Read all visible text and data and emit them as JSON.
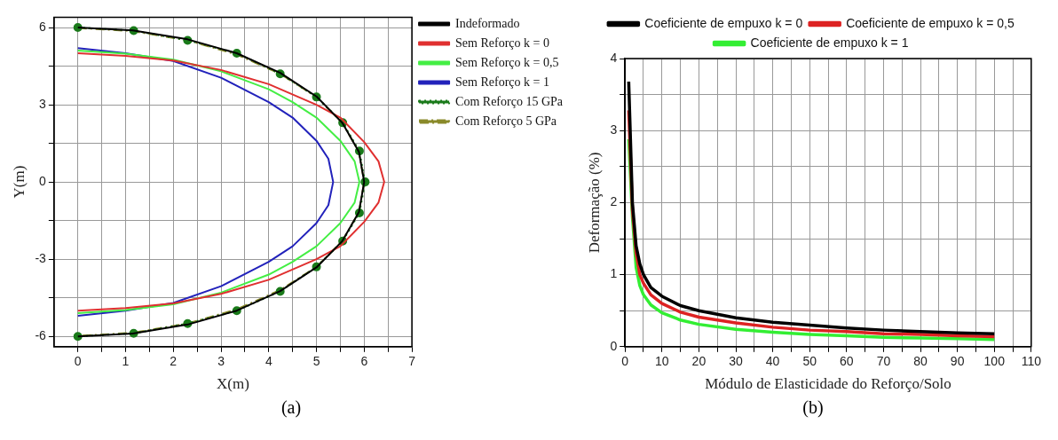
{
  "chart_data": [
    {
      "type": "line",
      "xlabel": "X(m)",
      "ylabel": "Y(m)",
      "annotations": [
        "(a)"
      ],
      "xlim": [
        -0.5,
        7
      ],
      "xticks": [
        0,
        {
          "value": 0.5,
          "label": null
        },
        1,
        {
          "value": 1.5,
          "label": null
        },
        2,
        {
          "value": 2.5,
          "label": null
        },
        3,
        {
          "value": 3.5,
          "label": null
        },
        4,
        {
          "value": 4.5,
          "label": null
        },
        5,
        {
          "value": 5.5,
          "label": null
        },
        6,
        {
          "value": 6.5,
          "label": null
        },
        7
      ],
      "ylim": [
        -6.4,
        6.4
      ],
      "yticks": [
        -6,
        {
          "value": -4.5,
          "label": null
        },
        -3,
        {
          "value": -1.5,
          "label": null
        },
        0,
        {
          "value": 1.5,
          "label": null
        },
        3,
        {
          "value": 4.5,
          "label": null
        },
        6
      ],
      "grid": true,
      "legend": "top right",
      "marker": "none",
      "series": [
        {
          "name": "Indeformado",
          "color": "#000000",
          "line_style": "solid",
          "x": [
            0,
            1.15,
            2.3,
            3.33,
            4.24,
            5,
            5.54,
            5.89,
            6,
            5.89,
            5.54,
            5,
            4.24,
            3.33,
            2.3,
            1.15,
            0
          ],
          "values": [
            6,
            5.89,
            5.54,
            5,
            4.24,
            3.32,
            2.3,
            1.17,
            0,
            -1.17,
            -2.3,
            -3.32,
            -4.24,
            -5,
            -5.54,
            -5.89,
            -6
          ]
        },
        {
          "name": "Sem Reforço k = 0",
          "color": "#e03030",
          "line_style": "solid",
          "x": [
            0,
            1,
            2,
            3,
            4,
            5,
            5.5,
            6,
            6.3,
            6.42,
            6.3,
            6,
            5.5,
            5,
            4,
            3,
            2,
            1,
            0
          ],
          "values": [
            5,
            4.9,
            4.72,
            4.35,
            3.8,
            3,
            2.5,
            1.55,
            0.8,
            0,
            -0.8,
            -1.55,
            -2.5,
            -3,
            -3.8,
            -4.35,
            -4.72,
            -4.9,
            -5
          ]
        },
        {
          "name": "Sem Reforço k = 0,5",
          "color": "#44ee44",
          "line_style": "solid",
          "x": [
            0,
            1,
            2,
            3,
            4,
            4.5,
            5,
            5.5,
            5.8,
            5.9,
            5.8,
            5.5,
            5,
            4.5,
            4,
            3,
            2,
            1,
            0
          ],
          "values": [
            5.1,
            4.98,
            4.75,
            4.3,
            3.6,
            3.1,
            2.5,
            1.6,
            0.8,
            0,
            -0.8,
            -1.6,
            -2.5,
            -3.1,
            -3.6,
            -4.3,
            -4.75,
            -4.98,
            -5.1
          ]
        },
        {
          "name": "Sem Reforço k = 1",
          "color": "#2222bb",
          "line_style": "solid",
          "x": [
            0,
            1,
            2,
            3,
            4,
            4.5,
            5,
            5.25,
            5.35,
            5.25,
            5,
            4.5,
            4,
            3,
            2,
            1,
            0
          ],
          "values": [
            5.2,
            5,
            4.7,
            4.05,
            3.1,
            2.5,
            1.6,
            0.9,
            0,
            -0.9,
            -1.6,
            -2.5,
            -3.1,
            -4.05,
            -4.7,
            -5,
            -5.2
          ]
        },
        {
          "name": "Com Reforço 15 GPa",
          "color": "#1a7a1a",
          "line_style": "dotted",
          "marker": "circle",
          "x": [
            0,
            1.17,
            2.3,
            3.33,
            4.24,
            5,
            5.55,
            5.9,
            6.02,
            5.9,
            5.55,
            5,
            4.24,
            3.33,
            2.3,
            1.17,
            0
          ],
          "values": [
            6,
            5.88,
            5.5,
            5,
            4.2,
            3.3,
            2.3,
            1.2,
            0,
            -1.2,
            -2.3,
            -3.3,
            -4.25,
            -5,
            -5.5,
            -5.88,
            -6
          ]
        },
        {
          "name": "Com Reforço 5 GPa",
          "color": "#8a8a2a",
          "line_style": "dashed",
          "x": [
            0,
            1.15,
            2.3,
            3.33,
            4.24,
            5,
            5.54,
            5.89,
            6,
            5.89,
            5.54,
            5,
            4.24,
            3.33,
            2.3,
            1.15,
            0
          ],
          "values": [
            5.98,
            5.86,
            5.5,
            4.95,
            4.2,
            3.3,
            2.3,
            1.17,
            0,
            -1.17,
            -2.3,
            -3.3,
            -4.2,
            -4.95,
            -5.5,
            -5.86,
            -5.98
          ]
        }
      ]
    },
    {
      "type": "line",
      "xlabel": "Módulo de Elasticidade do Reforço/Solo",
      "ylabel": "Deformação (%)",
      "annotations": [
        "(b)"
      ],
      "xlim": [
        0,
        110
      ],
      "xticks": [
        0,
        {
          "value": 5,
          "label": null
        },
        10,
        {
          "value": 15,
          "label": null
        },
        20,
        {
          "value": 25,
          "label": null
        },
        30,
        {
          "value": 35,
          "label": null
        },
        40,
        {
          "value": 45,
          "label": null
        },
        50,
        {
          "value": 55,
          "label": null
        },
        60,
        {
          "value": 65,
          "label": null
        },
        70,
        {
          "value": 75,
          "label": null
        },
        80,
        {
          "value": 85,
          "label": null
        },
        90,
        {
          "value": 95,
          "label": null
        },
        100,
        {
          "value": 105,
          "label": null
        },
        110
      ],
      "ylim": [
        0,
        4
      ],
      "yticks": [
        0,
        {
          "value": 0.5,
          "label": null
        },
        1,
        {
          "value": 1.5,
          "label": null
        },
        2,
        {
          "value": 2.5,
          "label": null
        },
        3,
        {
          "value": 3.5,
          "label": null
        },
        4
      ],
      "grid": true,
      "legend": "top",
      "marker": "none",
      "x": [
        1,
        2,
        3,
        4,
        5,
        7,
        10,
        15,
        20,
        30,
        40,
        50,
        60,
        70,
        80,
        90,
        100
      ],
      "series": [
        {
          "name": "Coeficiente de empuxo k = 0",
          "color": "#000000",
          "line_style": "solid",
          "values": [
            3.68,
            2.0,
            1.4,
            1.15,
            1.0,
            0.82,
            0.7,
            0.57,
            0.5,
            0.4,
            0.34,
            0.3,
            0.26,
            0.23,
            0.21,
            0.19,
            0.18
          ]
        },
        {
          "name": "Coeficiente de empuxo k = 0,5",
          "color": "#dd2222",
          "line_style": "solid",
          "values": [
            3.28,
            1.9,
            1.3,
            1.0,
            0.88,
            0.72,
            0.6,
            0.48,
            0.41,
            0.33,
            0.27,
            0.23,
            0.21,
            0.18,
            0.17,
            0.15,
            0.14
          ]
        },
        {
          "name": "Coeficiente de empuxo k = 1",
          "color": "#33ee33",
          "line_style": "solid",
          "values": [
            2.88,
            1.8,
            1.1,
            0.85,
            0.72,
            0.58,
            0.47,
            0.37,
            0.31,
            0.24,
            0.2,
            0.17,
            0.15,
            0.13,
            0.12,
            0.11,
            0.1
          ]
        }
      ]
    }
  ]
}
